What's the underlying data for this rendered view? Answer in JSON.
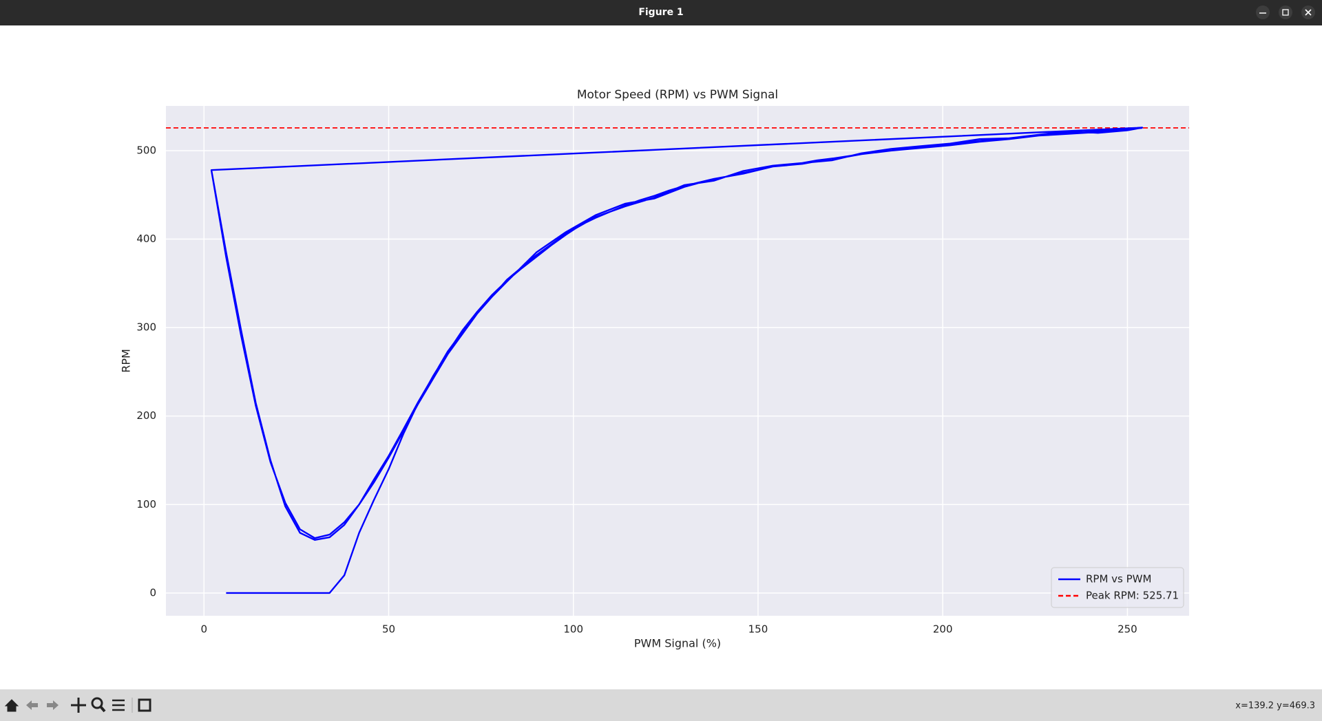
{
  "window": {
    "title": "Figure 1",
    "status": "x=139.2 y=469.3"
  },
  "chart_data": {
    "type": "line",
    "title": "Motor Speed (RPM) vs PWM Signal",
    "x_label": "PWM Signal (%)",
    "y_label": "RPM",
    "xlim": [
      -10.3,
      266.7
    ],
    "ylim": [
      -25.7,
      550.5
    ],
    "xticks": [
      0,
      50,
      100,
      150,
      200,
      250
    ],
    "yticks": [
      0,
      100,
      200,
      300,
      400,
      500
    ],
    "grid": true,
    "legend": "lower right",
    "series": [
      {
        "name": "RPM vs PWM",
        "color": "#0000ff",
        "x": [
          6,
          10,
          14,
          18,
          22,
          26,
          30,
          34,
          38,
          42,
          46,
          50,
          54,
          58,
          62,
          66,
          70,
          74,
          78,
          82,
          86,
          90,
          94,
          98,
          102,
          106,
          110,
          114,
          118,
          122,
          126,
          130,
          134,
          138,
          142,
          146,
          150,
          154,
          158,
          162,
          166,
          170,
          174,
          178,
          182,
          186,
          190,
          194,
          198,
          202,
          206,
          210,
          214,
          218,
          222,
          226,
          230,
          234,
          238,
          242,
          246,
          250,
          254,
          2,
          6,
          10,
          14,
          18,
          22,
          26,
          30,
          34,
          38,
          42,
          46,
          50,
          54,
          58,
          66,
          74,
          82,
          90,
          98,
          106,
          114,
          122,
          130,
          138,
          146,
          154,
          162,
          170,
          178,
          186,
          194,
          202,
          210,
          218,
          226,
          234,
          242,
          250,
          254,
          2,
          6,
          10,
          14,
          18,
          22,
          26,
          30,
          34,
          38,
          42,
          46,
          50,
          54,
          58,
          66,
          74,
          82,
          90,
          98,
          106,
          114,
          122,
          130,
          138,
          146,
          154,
          162,
          170,
          178,
          186,
          194,
          202,
          210,
          218,
          226,
          234,
          242,
          250,
          254
        ],
        "values": [
          0,
          0,
          0,
          0,
          0,
          0,
          0,
          0,
          20,
          68,
          105,
          140,
          180,
          215,
          245,
          272,
          297,
          318,
          337,
          353,
          367,
          380,
          393,
          405,
          416,
          424,
          431,
          438,
          444,
          449,
          455,
          460,
          464,
          468,
          471,
          475,
          478,
          482,
          484,
          486,
          489,
          491,
          493,
          496,
          498,
          500,
          502,
          504,
          505,
          507,
          509,
          511,
          512,
          514,
          516,
          517,
          519,
          520,
          521,
          522,
          523,
          524,
          526,
          478,
          380,
          292,
          212,
          148,
          102,
          72,
          62,
          66,
          80,
          100,
          125,
          153,
          183,
          214,
          270,
          316,
          354,
          382,
          406,
          425,
          437,
          447,
          461,
          466,
          477,
          483,
          486,
          489,
          497,
          502,
          505,
          508,
          513,
          514,
          518,
          522,
          520,
          523,
          526,
          478,
          385,
          298,
          215,
          150,
          98,
          68,
          60,
          63,
          77,
          100,
          128,
          155,
          185,
          216,
          273,
          318,
          352,
          385,
          408,
          427,
          440,
          446,
          459,
          468,
          474,
          482,
          485,
          491,
          496,
          500,
          503,
          506,
          510,
          513,
          517,
          519,
          521,
          524,
          525.71
        ]
      }
    ],
    "hline": {
      "name": "Peak RPM: 525.71",
      "value": 525.71,
      "color": "#ff0000"
    }
  }
}
